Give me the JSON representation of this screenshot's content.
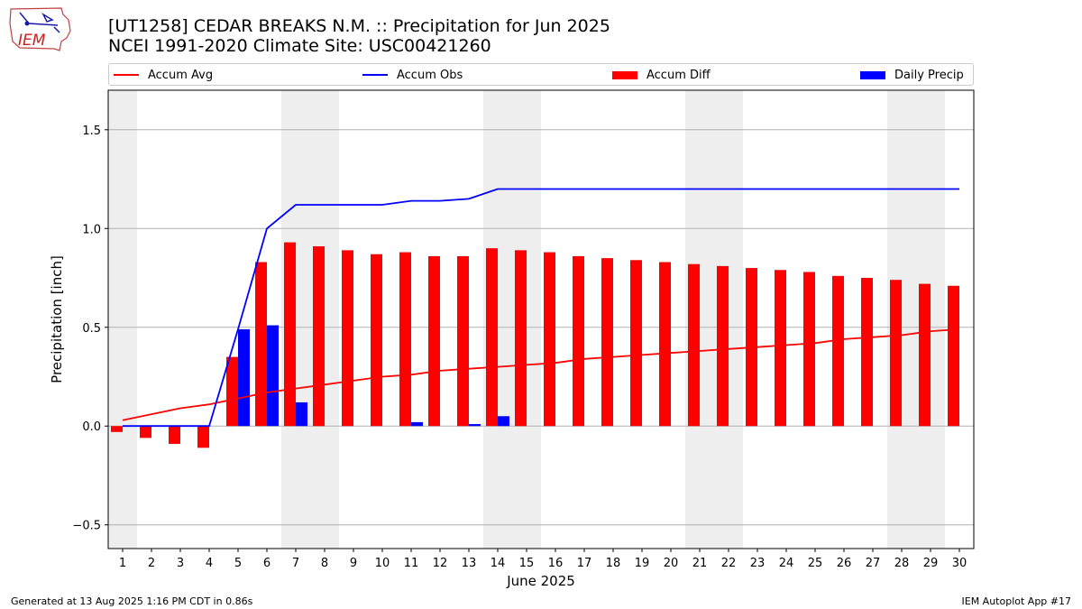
{
  "header": {
    "title_line1": "[UT1258] CEDAR BREAKS N.M. :: Precipitation for Jun 2025",
    "title_line2": "NCEI 1991-2020 Climate Site: USC00421260",
    "logo_text": "IEM"
  },
  "legend": {
    "accum_avg": "Accum Avg",
    "accum_obs": "Accum Obs",
    "accum_diff": "Accum Diff",
    "daily_precip": "Daily Precip"
  },
  "footer": {
    "generated": "Generated at 13 Aug 2025 1:16 PM CDT in 0.86s",
    "app": "IEM Autoplot App #17"
  },
  "colors": {
    "accum_avg": "#ff0000",
    "accum_obs": "#0000ff",
    "accum_diff": "#ff0000",
    "daily_precip": "#0000ff",
    "weekend_shade": "#eeeeee",
    "grid": "#b0b0b0"
  },
  "chart_data": {
    "type": "bar",
    "xlabel": "June 2025",
    "ylabel": "Precipitation [inch]",
    "ylim": [
      -0.62,
      1.7
    ],
    "yticks": [
      -0.5,
      0.0,
      0.5,
      1.0,
      1.5
    ],
    "ytick_labels": [
      "−0.5",
      "0.0",
      "0.5",
      "1.0",
      "1.5"
    ],
    "days": [
      1,
      2,
      3,
      4,
      5,
      6,
      7,
      8,
      9,
      10,
      11,
      12,
      13,
      14,
      15,
      16,
      17,
      18,
      19,
      20,
      21,
      22,
      23,
      24,
      25,
      26,
      27,
      28,
      29,
      30
    ],
    "grid": "horizontal",
    "legend_position": "top",
    "shaded_days": [
      1,
      7,
      8,
      14,
      15,
      21,
      22,
      28,
      29
    ],
    "series": [
      {
        "name": "Accum Avg",
        "kind": "line",
        "values": [
          0.03,
          0.06,
          0.09,
          0.11,
          0.14,
          0.17,
          0.19,
          0.21,
          0.23,
          0.25,
          0.26,
          0.28,
          0.29,
          0.3,
          0.31,
          0.32,
          0.34,
          0.35,
          0.36,
          0.37,
          0.38,
          0.39,
          0.4,
          0.41,
          0.42,
          0.44,
          0.45,
          0.46,
          0.48,
          0.49
        ]
      },
      {
        "name": "Accum Obs",
        "kind": "line",
        "values": [
          0,
          0,
          0,
          0,
          0.49,
          1.0,
          1.12,
          1.12,
          1.12,
          1.12,
          1.14,
          1.14,
          1.15,
          1.2,
          1.2,
          1.2,
          1.2,
          1.2,
          1.2,
          1.2,
          1.2,
          1.2,
          1.2,
          1.2,
          1.2,
          1.2,
          1.2,
          1.2,
          1.2,
          1.2
        ]
      },
      {
        "name": "Accum Diff",
        "kind": "bar",
        "values": [
          -0.03,
          -0.06,
          -0.09,
          -0.11,
          0.35,
          0.83,
          0.93,
          0.91,
          0.89,
          0.87,
          0.88,
          0.86,
          0.86,
          0.9,
          0.89,
          0.88,
          0.86,
          0.85,
          0.84,
          0.83,
          0.82,
          0.81,
          0.8,
          0.79,
          0.78,
          0.76,
          0.75,
          0.74,
          0.72,
          0.71
        ]
      },
      {
        "name": "Daily Precip",
        "kind": "bar",
        "values": [
          0,
          0,
          0,
          0,
          0.49,
          0.51,
          0.12,
          0,
          0,
          0,
          0.02,
          0,
          0.01,
          0.05,
          0,
          0,
          0,
          0,
          0,
          0,
          0,
          0,
          0,
          0,
          0,
          0,
          0,
          0,
          0,
          0
        ]
      }
    ]
  }
}
